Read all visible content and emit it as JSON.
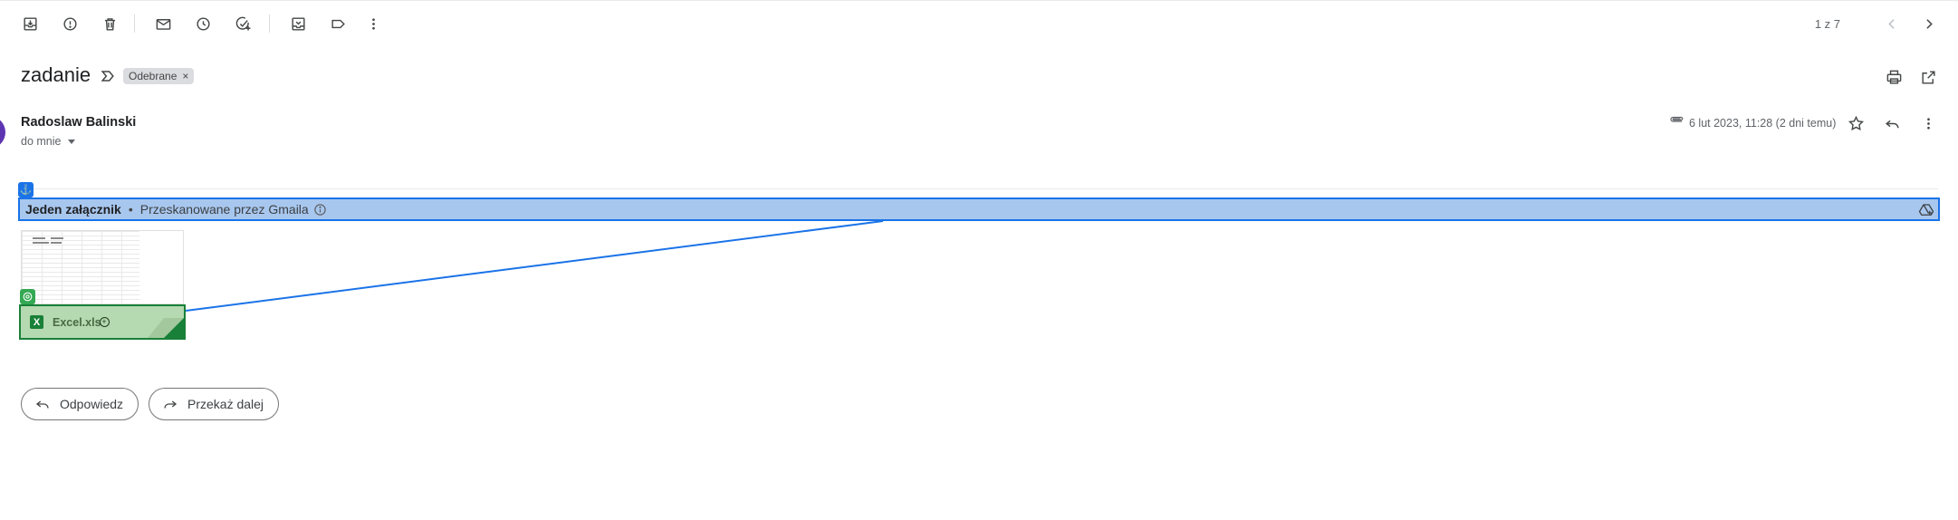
{
  "toolbar": {
    "icons": [
      "archive-icon",
      "report-spam-icon",
      "delete-icon",
      "mark-unread-icon",
      "snooze-icon",
      "add-task-icon",
      "move-to-icon",
      "label-icon",
      "more-icon"
    ],
    "pager": "1 z 7"
  },
  "email": {
    "subject": "zadanie",
    "label_chip": "Odebrane",
    "label_remove": "×",
    "sender_name": "Radoslaw Balinski",
    "recipient": "do mnie",
    "date": "6 lut 2023, 11:28 (2 dni temu)"
  },
  "attachments": {
    "title": "Jeden załącznik",
    "separator": "•",
    "scan_text": "Przeskanowane przez Gmaila",
    "file_name": "Excel.xls",
    "file_type_badge": "X"
  },
  "actions": {
    "reply_label": "Odpowiedz",
    "forward_label": "Przekaż dalej"
  },
  "colors": {
    "highlight_blue": "#1a73e8",
    "highlight_blue_fill": "#a8c7ee",
    "highlight_green": "#188038",
    "highlight_green_fill": "#b5d9b0",
    "avatar": "#5e35b1"
  }
}
